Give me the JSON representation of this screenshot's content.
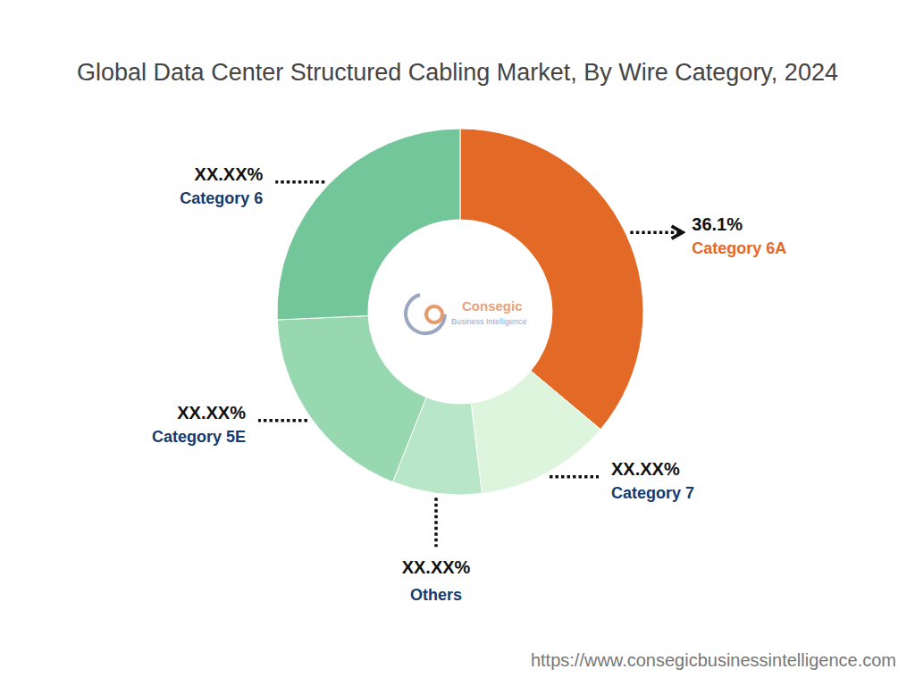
{
  "chart_data": {
    "type": "pie",
    "title": "Global Data Center Structured Cabling Market, By Wire Category, 2024",
    "categories": [
      "Category 6A",
      "Category 7",
      "Others",
      "Category 5E",
      "Category 6"
    ],
    "values": [
      36.1,
      12.0,
      7.9,
      18.3,
      25.7
    ],
    "value_labels": [
      "36.1%",
      "XX.XX%",
      "XX.XX%",
      "XX.XX%",
      "XX.XX%"
    ],
    "colors": [
      "#e36a26",
      "#dcf5dc",
      "#b8e6c8",
      "#97d8b0",
      "#72c69a"
    ],
    "data_labels": true,
    "annotations": [
      "Consegic",
      "Business Intelligence",
      "https://www.consegicbusinessintelligence.com"
    ]
  }
}
